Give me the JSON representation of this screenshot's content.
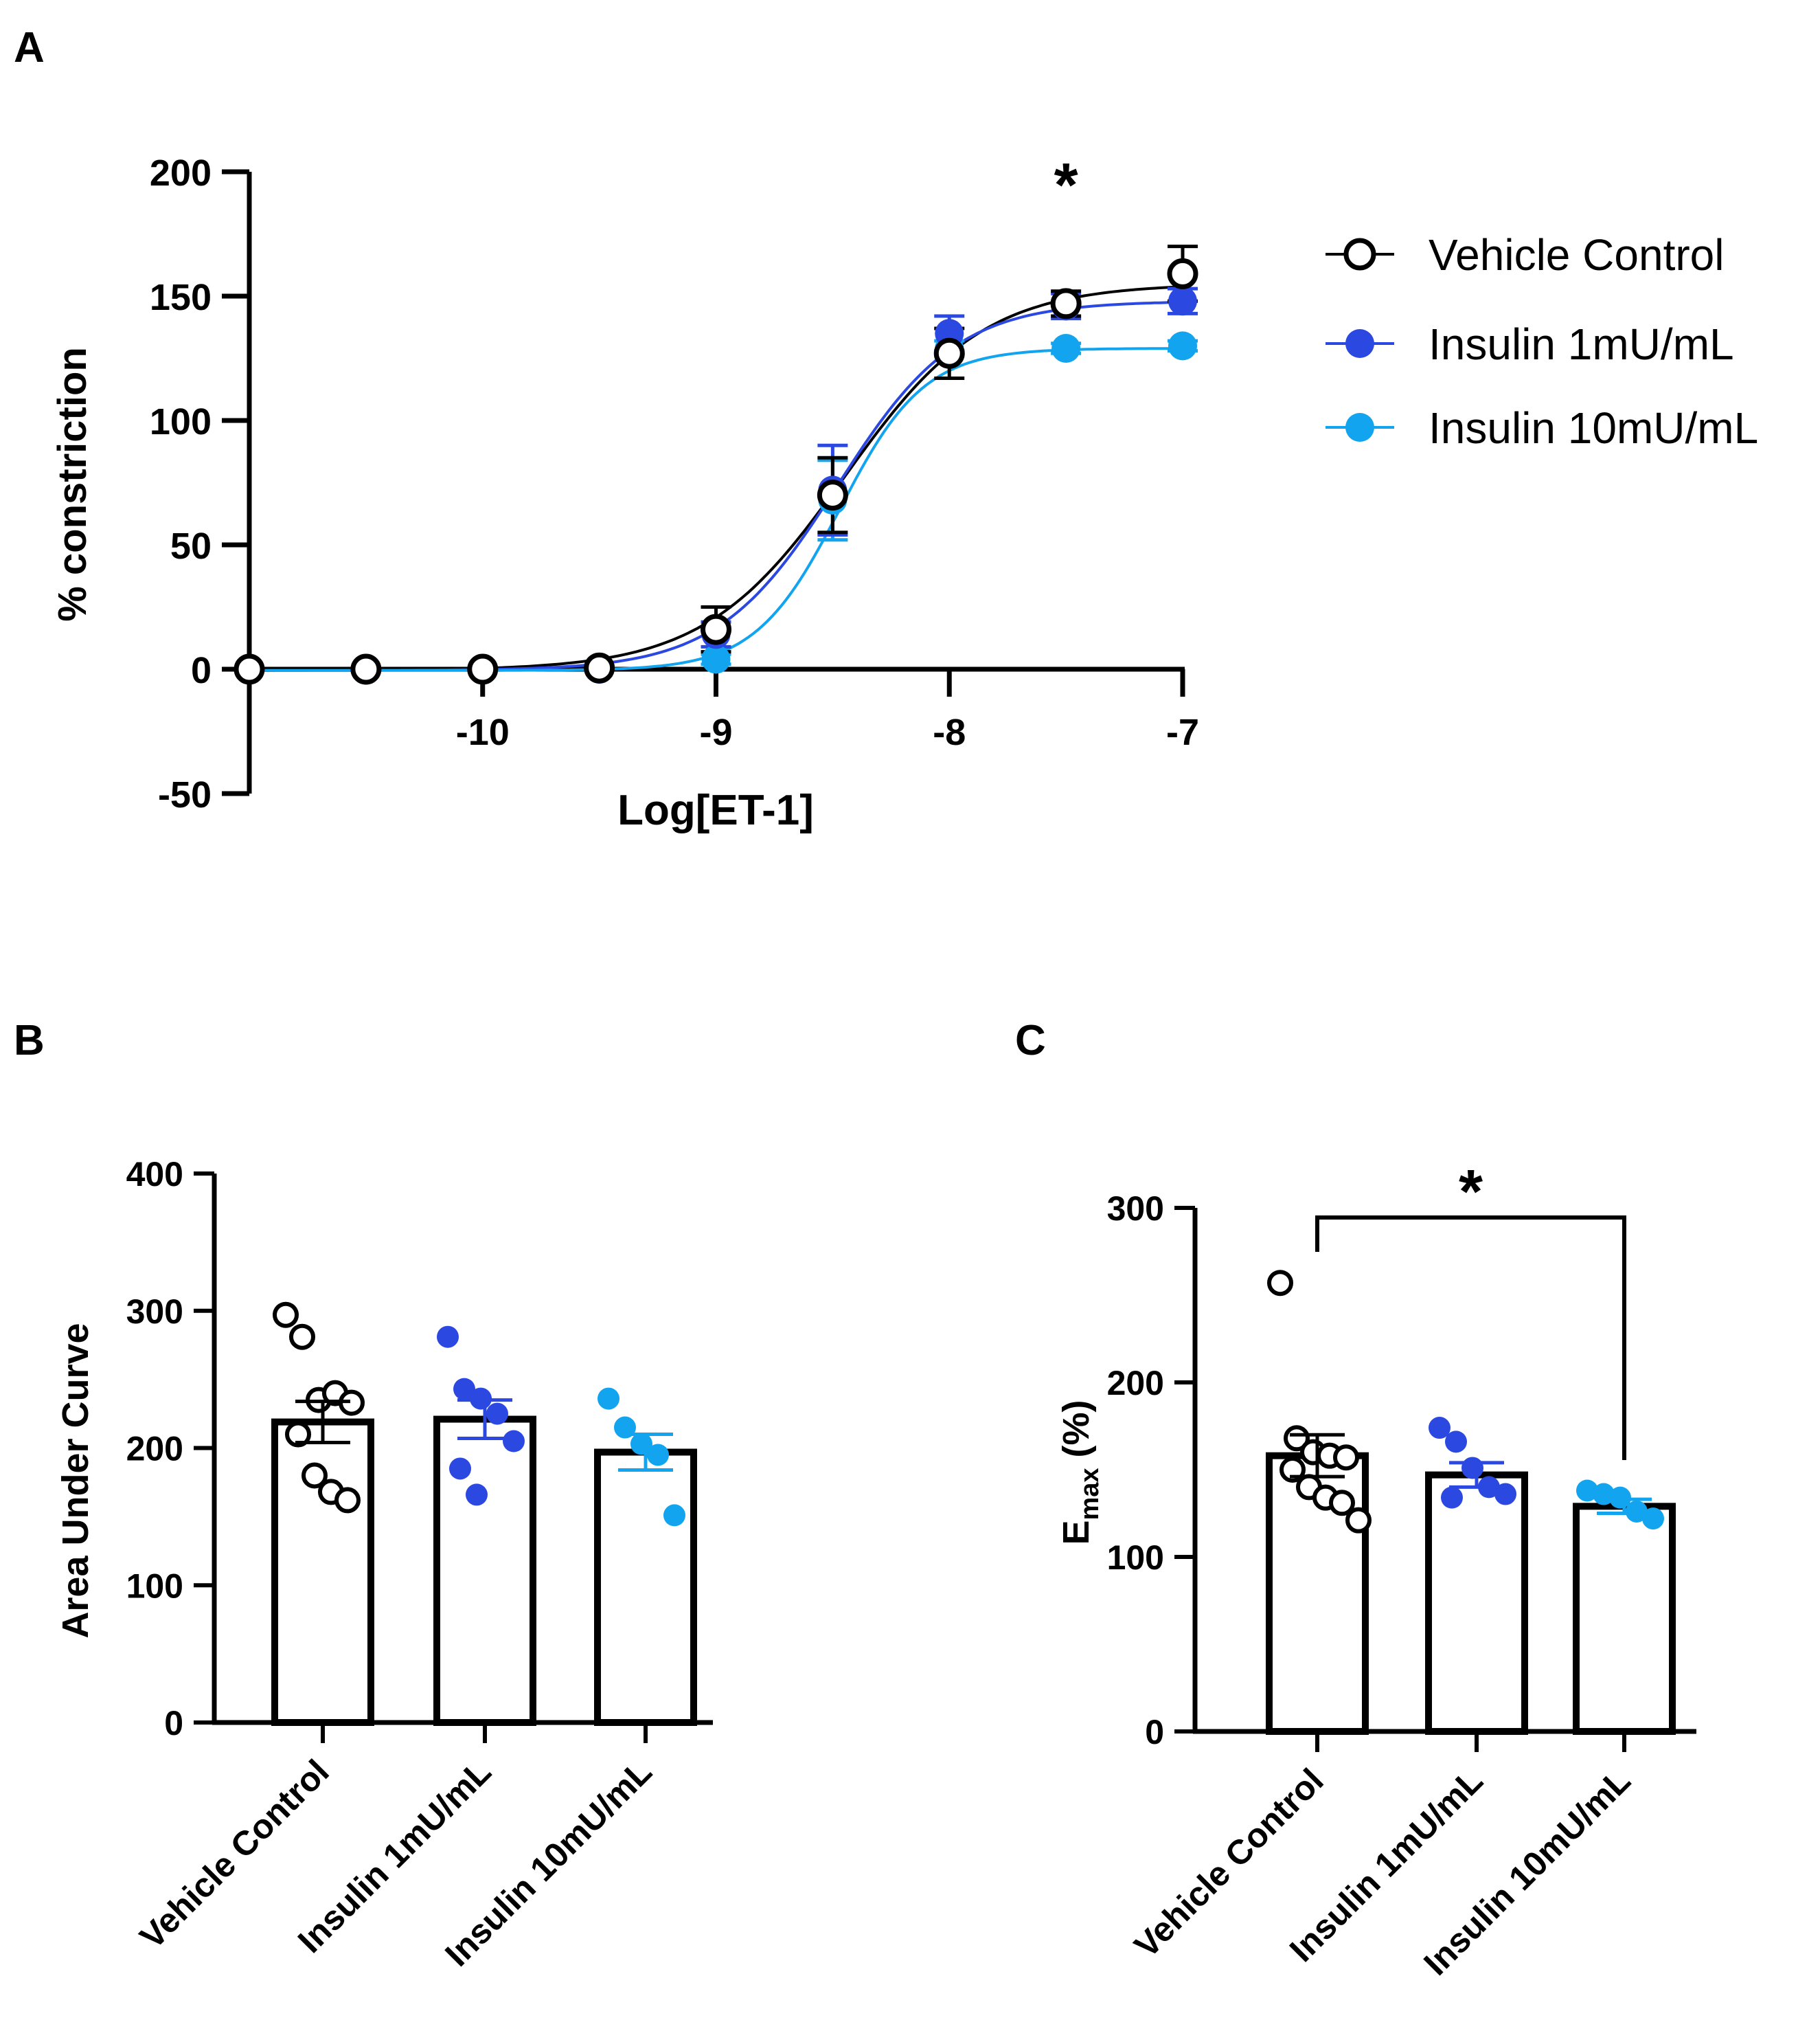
{
  "colors": {
    "vehicle": "#000000",
    "insulin_1": "#2b48e0",
    "insulin_10": "#12a4ee"
  },
  "chart_data": [
    {
      "panel": "A",
      "type": "line",
      "ylabel": "% constriction",
      "xlabel": "Log[ET-1]",
      "xlim": [
        -11,
        -7
      ],
      "ylim": [
        -50,
        200
      ],
      "x_ticks": [
        -10,
        -9,
        -8,
        -7
      ],
      "y_ticks": [
        -50,
        0,
        50,
        100,
        150,
        200
      ],
      "significance_marker": {
        "text": "*",
        "x": -7.5
      },
      "series": [
        {
          "name": "Vehicle Control",
          "marker": "open-circle",
          "x": [
            -11,
            -10.5,
            -10,
            -9.5,
            -9,
            -8.5,
            -8,
            -7.5,
            -7
          ],
          "y": [
            0,
            0,
            0,
            0.5,
            16,
            70,
            127,
            147,
            159
          ],
          "error": [
            0,
            0,
            0,
            0,
            9,
            15,
            10,
            5,
            11
          ],
          "fit": {
            "bottom": -0.5,
            "top": 155,
            "logEC50": -8.45,
            "hill": 1.45
          }
        },
        {
          "name": "Insulin 1mU/mL",
          "marker": "filled-circle",
          "x": [
            -11,
            -10.5,
            -10,
            -9.5,
            -9,
            -8.5,
            -8,
            -7.5,
            -7
          ],
          "y": [
            0,
            0,
            0,
            0,
            14,
            72,
            135,
            146,
            148
          ],
          "error": [
            0,
            0,
            0,
            0,
            5,
            18,
            7,
            5,
            5
          ],
          "fit": {
            "bottom": -0.5,
            "top": 148,
            "logEC50": -8.48,
            "hill": 1.7
          }
        },
        {
          "name": "Insulin 10mU/mL",
          "marker": "filled-circle",
          "x": [
            -11,
            -10.5,
            -10,
            -9.5,
            -9,
            -8.5,
            -8,
            -7.5,
            -7
          ],
          "y": [
            0,
            0,
            0,
            0,
            4,
            68,
            129,
            129,
            130
          ],
          "error": [
            0,
            0,
            0,
            0,
            2,
            16,
            3,
            2,
            2
          ],
          "fit": {
            "bottom": -0.5,
            "top": 129,
            "logEC50": -8.47,
            "hill": 2.4
          }
        }
      ]
    },
    {
      "panel": "B",
      "type": "bar",
      "ylabel": "Area Under Curve",
      "ylim": [
        0,
        400
      ],
      "y_ticks": [
        0,
        100,
        200,
        300,
        400
      ],
      "categories": [
        "Vehicle Control",
        "Insulin 1mU/mL",
        "Insulin 10mU/mL"
      ],
      "values": [
        219,
        221,
        197
      ],
      "errors": [
        15,
        14,
        13
      ],
      "points": [
        [
          297,
          281,
          235,
          240,
          233,
          210,
          180,
          168,
          162
        ],
        [
          281,
          243,
          236,
          225,
          205,
          185,
          166
        ],
        [
          236,
          215,
          203,
          195,
          151
        ]
      ]
    },
    {
      "panel": "C",
      "type": "bar",
      "ylabel_main": "E",
      "ylabel_sub": "max",
      "ylabel_tail": " (%)",
      "ylim": [
        0,
        300
      ],
      "y_ticks": [
        0,
        100,
        200,
        300
      ],
      "categories": [
        "Vehicle Control",
        "Insulin 1mU/mL",
        "Insulin 10mU/mL"
      ],
      "values": [
        158,
        147,
        129
      ],
      "errors": [
        12,
        7,
        4
      ],
      "points": [
        [
          257,
          168,
          160,
          158,
          157,
          150,
          140,
          134,
          131,
          121
        ],
        [
          174,
          166,
          151,
          140,
          136,
          134
        ],
        [
          138,
          136,
          134,
          126,
          122
        ]
      ],
      "significance": {
        "from": 0,
        "to": 2,
        "label": "*"
      }
    }
  ],
  "panel_labels": {
    "a": "A",
    "b": "B",
    "c": "C"
  },
  "legend": [
    "Vehicle Control",
    "Insulin 1mU/mL",
    "Insulin 10mU/mL"
  ]
}
